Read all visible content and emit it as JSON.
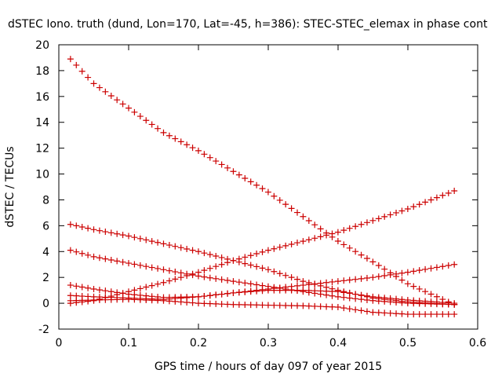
{
  "chart_data": {
    "type": "scatter",
    "title": "dSTEC Iono. truth (dund, Lon=170, Lat=-45, h=386): STEC-STEC_elemax in phase cont",
    "xlabel": "GPS time / hours of day 097 of year 2015",
    "ylabel": "dSTEC  / TECUs",
    "xlim": [
      0,
      0.6
    ],
    "ylim": [
      -2,
      20
    ],
    "xticks": [
      0,
      0.1,
      0.2,
      0.3,
      0.4,
      0.5,
      0.6
    ],
    "yticks": [
      -2,
      0,
      2,
      4,
      6,
      8,
      10,
      12,
      14,
      16,
      18,
      20
    ],
    "xtick_labels": [
      "0",
      "0.1",
      "0.2",
      "0.3",
      "0.4",
      "0.5",
      "0.6"
    ],
    "ytick_labels": [
      "-2",
      "0",
      "2",
      "4",
      "6",
      "8",
      "10",
      "12",
      "14",
      "16",
      "18",
      "20"
    ],
    "grid": false,
    "legend": "none",
    "marker": "+",
    "color": "#cc0000",
    "x_range": [
      0.0167,
      0.5667
    ],
    "point_step": 0.00833,
    "series": [
      {
        "x": [
          0.0167,
          0.05,
          0.1,
          0.15,
          0.2,
          0.25,
          0.3,
          0.35,
          0.4,
          0.45,
          0.5,
          0.5667
        ],
        "y": [
          18.9,
          17.0,
          15.1,
          13.2,
          11.8,
          10.2,
          8.6,
          6.7,
          4.8,
          3.2,
          1.5,
          -0.1
        ]
      },
      {
        "x": [
          0.0167,
          0.05,
          0.1,
          0.15,
          0.2,
          0.25,
          0.3,
          0.35,
          0.4,
          0.45,
          0.5,
          0.5667
        ],
        "y": [
          0.0,
          0.2,
          0.9,
          1.6,
          2.4,
          3.3,
          4.1,
          4.8,
          5.5,
          6.4,
          7.3,
          8.7
        ]
      },
      {
        "x": [
          0.0167,
          0.05,
          0.1,
          0.15,
          0.2,
          0.25,
          0.3,
          0.35,
          0.4,
          0.45,
          0.5,
          0.5667
        ],
        "y": [
          6.1,
          5.7,
          5.2,
          4.6,
          4.0,
          3.3,
          2.6,
          1.7,
          1.0,
          0.4,
          0.1,
          -0.1
        ]
      },
      {
        "x": [
          0.0167,
          0.05,
          0.1,
          0.15,
          0.2,
          0.25,
          0.3,
          0.35,
          0.4,
          0.45,
          0.5,
          0.5667
        ],
        "y": [
          4.1,
          3.6,
          3.1,
          2.6,
          2.1,
          1.7,
          1.3,
          0.9,
          0.5,
          0.2,
          0.0,
          -0.1
        ]
      },
      {
        "x": [
          0.0167,
          0.05,
          0.1,
          0.15,
          0.2,
          0.25,
          0.3,
          0.35,
          0.4,
          0.45,
          0.5,
          0.5667
        ],
        "y": [
          1.4,
          1.1,
          0.7,
          0.45,
          0.5,
          0.8,
          1.1,
          1.4,
          1.7,
          2.0,
          2.4,
          3.0
        ]
      },
      {
        "x": [
          0.0167,
          0.05,
          0.1,
          0.15,
          0.2,
          0.25,
          0.3,
          0.35,
          0.4,
          0.45,
          0.5,
          0.5667
        ],
        "y": [
          0.6,
          0.5,
          0.4,
          0.3,
          0.5,
          0.8,
          1.0,
          1.0,
          0.9,
          0.5,
          0.25,
          0.0
        ]
      },
      {
        "x": [
          0.0167,
          0.05,
          0.1,
          0.15,
          0.2,
          0.25,
          0.3,
          0.35,
          0.4,
          0.45,
          0.5,
          0.5667
        ],
        "y": [
          0.2,
          0.25,
          0.3,
          0.2,
          0.0,
          -0.1,
          -0.15,
          -0.2,
          -0.3,
          -0.7,
          -0.85,
          -0.85
        ]
      }
    ]
  }
}
